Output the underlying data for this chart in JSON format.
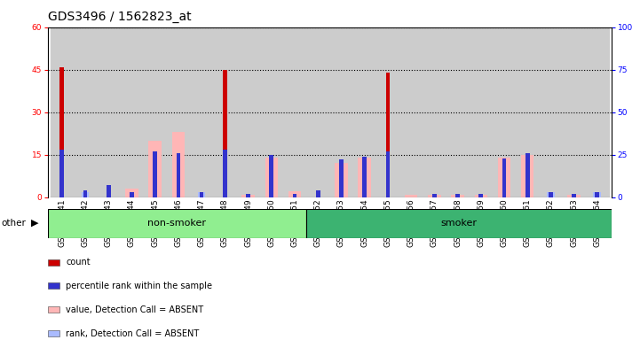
{
  "title": "GDS3496 / 1562823_at",
  "samples": [
    "GSM219241",
    "GSM219242",
    "GSM219243",
    "GSM219244",
    "GSM219245",
    "GSM219246",
    "GSM219247",
    "GSM219248",
    "GSM219249",
    "GSM219250",
    "GSM219251",
    "GSM219252",
    "GSM219253",
    "GSM219254",
    "GSM219255",
    "GSM219256",
    "GSM219257",
    "GSM219258",
    "GSM219259",
    "GSM219260",
    "GSM219261",
    "GSM219262",
    "GSM219263",
    "GSM219264"
  ],
  "count": [
    46,
    0,
    0,
    0,
    0,
    0,
    0,
    45,
    0,
    0,
    0,
    0,
    0,
    0,
    44,
    0,
    0,
    0,
    0,
    0,
    0,
    0,
    0,
    0
  ],
  "percentile_rank": [
    28,
    4,
    7,
    3,
    27,
    26,
    3,
    28,
    2,
    25,
    2,
    4,
    22,
    24,
    27,
    0,
    2,
    2,
    2,
    23,
    26,
    3,
    2,
    3
  ],
  "value_absent": [
    0,
    0,
    0,
    3,
    20,
    23,
    0,
    0,
    1,
    14,
    2,
    0,
    12,
    14,
    0,
    1,
    1,
    1,
    1,
    14,
    15,
    0,
    1,
    0
  ],
  "rank_absent": [
    0,
    3,
    0,
    0,
    0,
    0,
    3,
    0,
    0,
    0,
    0,
    0,
    0,
    0,
    0,
    0,
    0,
    0,
    0,
    0,
    0,
    3,
    0,
    3
  ],
  "groups": [
    {
      "label": "non-smoker",
      "start": 0,
      "end": 10,
      "color": "#90EE90"
    },
    {
      "label": "smoker",
      "start": 11,
      "end": 23,
      "color": "#3CB371"
    }
  ],
  "ylim_left": [
    0,
    60
  ],
  "ylim_right": [
    0,
    100
  ],
  "yticks_left": [
    0,
    15,
    30,
    45,
    60
  ],
  "yticks_right": [
    0,
    25,
    50,
    75,
    100
  ],
  "color_count": "#cc0000",
  "color_rank": "#3333cc",
  "color_value_absent": "#ffb6b6",
  "color_rank_absent": "#aabbff",
  "bg_xticklabels": "#cccccc",
  "title_fontsize": 10,
  "tick_fontsize": 6.5,
  "legend_fontsize": 7,
  "grid_color": "black",
  "non_smoker_count": 11,
  "smoker_count": 13
}
